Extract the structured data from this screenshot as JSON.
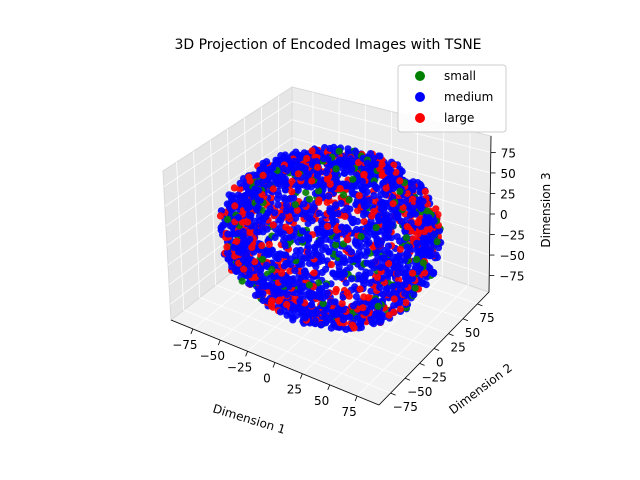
{
  "chart_data": {
    "type": "scatter",
    "projection": "3d",
    "title": "3D Projection of Encoded Images with TSNE",
    "xlabel": "Dimension 1",
    "ylabel": "Dimension 2",
    "zlabel": "Dimension 3",
    "xlim": [
      -95,
      95
    ],
    "ylim": [
      -95,
      95
    ],
    "zlim": [
      -95,
      95
    ],
    "xticks": [
      "−75",
      "−50",
      "−25",
      "0",
      "25",
      "50",
      "75"
    ],
    "yticks": [
      "−75",
      "−50",
      "−25",
      "0",
      "25",
      "50",
      "75"
    ],
    "zticks": [
      "−75",
      "−50",
      "−25",
      "0",
      "25",
      "50",
      "75"
    ],
    "grid": true,
    "legend_position": "top-right",
    "series": [
      {
        "name": "small",
        "color": "#008000",
        "shape": "sphere",
        "radius": 90
      },
      {
        "name": "medium",
        "color": "#0000ff",
        "shape": "sphere",
        "radius": 90
      },
      {
        "name": "large",
        "color": "#ff0000",
        "shape": "sphere",
        "radius": 90
      }
    ]
  }
}
